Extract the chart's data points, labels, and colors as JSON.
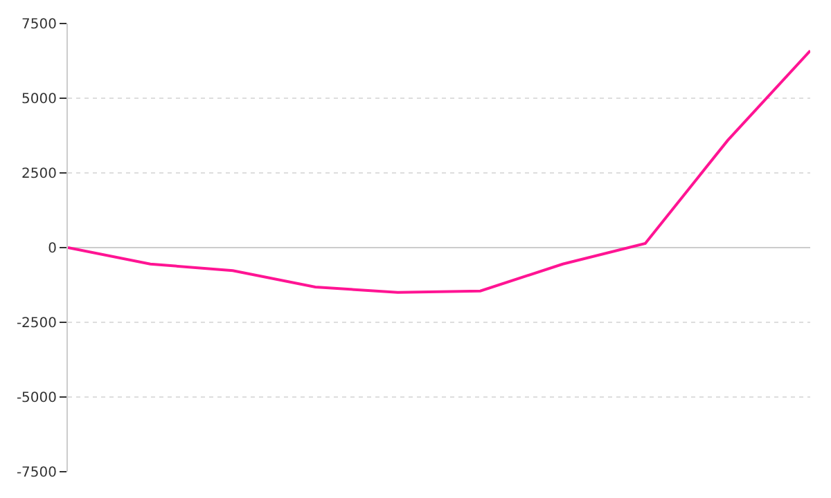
{
  "chart_data": {
    "type": "line",
    "categories": [
      null,
      null,
      null,
      null,
      null,
      null,
      null,
      null,
      null,
      null
    ],
    "series": [
      {
        "color": "#ff1493",
        "values": [
          0,
          -550,
          -770,
          -1320,
          -1500,
          -1450,
          -550,
          140,
          3590,
          6590
        ]
      }
    ],
    "ylim": [
      -7500,
      7500
    ],
    "yticks": [
      -7500,
      -5000,
      -2500,
      0,
      2500,
      5000,
      7500
    ],
    "tick_labels": "y",
    "grid": "y",
    "marker": "none",
    "line_style": "solid"
  }
}
